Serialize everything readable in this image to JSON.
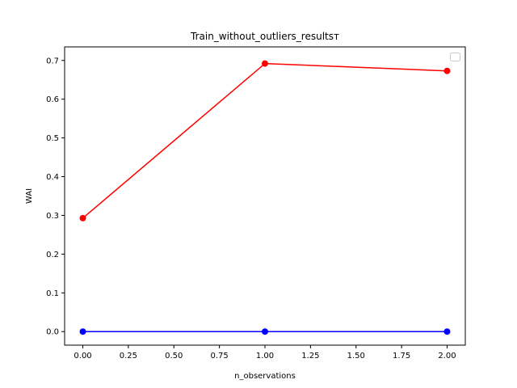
{
  "chart_data": {
    "type": "line",
    "title": "Train_without_outliers_resultsᴛ",
    "xlabel": "n_observations",
    "ylabel": "WAI",
    "xlim": [
      -0.1,
      2.1
    ],
    "ylim": [
      -0.035,
      0.735
    ],
    "x_ticks": [
      "0.00",
      "0.25",
      "0.50",
      "0.75",
      "1.00",
      "1.25",
      "1.50",
      "1.75",
      "2.00"
    ],
    "y_ticks": [
      "0.0",
      "0.1",
      "0.2",
      "0.3",
      "0.4",
      "0.5",
      "0.6",
      "0.7"
    ],
    "x": [
      0,
      1,
      2
    ],
    "series": [
      {
        "values": [
          0.293,
          0.692,
          0.673
        ],
        "color": "#ff0000",
        "marker": "circle"
      },
      {
        "values": [
          0.0,
          0.0,
          0.0
        ],
        "color": "#0000ff",
        "marker": "circle"
      }
    ],
    "grid": false,
    "legend": {
      "placement": "upper-right",
      "entries": []
    }
  }
}
